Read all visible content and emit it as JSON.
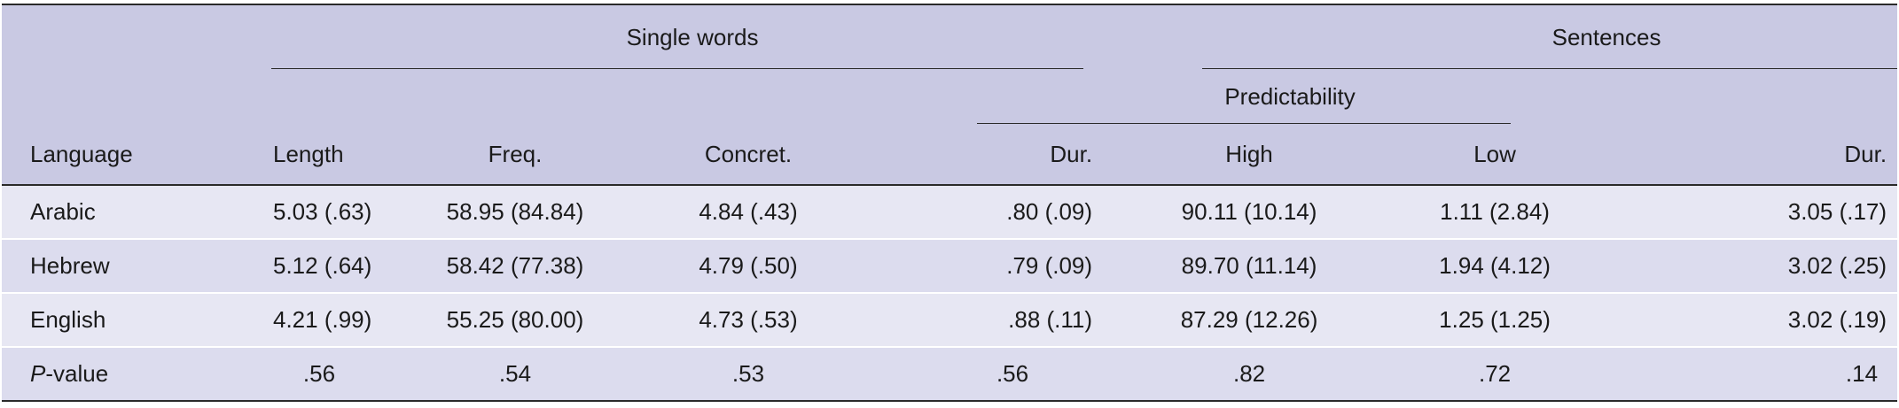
{
  "table": {
    "header": {
      "group_single_words": "Single words",
      "group_sentences": "Sentences",
      "subgroup_predictability": "Predictability",
      "columns": [
        "Language",
        "Length",
        "Freq.",
        "Concret.",
        "Dur.",
        "High",
        "Low",
        "Dur."
      ]
    },
    "rows": [
      {
        "language": "Arabic",
        "cells": [
          "5.03 (.63)",
          "58.95 (84.84)",
          "4.84 (.43)",
          ".80 (.09)",
          "90.11 (10.14)",
          "1.11 (2.84)",
          "3.05 (.17)"
        ]
      },
      {
        "language": "Hebrew",
        "cells": [
          "5.12 (.64)",
          "58.42 (77.38)",
          "4.79 (.50)",
          ".79 (.09)",
          "89.70 (11.14)",
          "1.94 (4.12)",
          "3.02 (.25)"
        ]
      },
      {
        "language": "English",
        "cells": [
          "4.21 (.99)",
          "55.25 (80.00)",
          "4.73 (.53)",
          ".88 (.11)",
          "87.29 (12.26)",
          "1.25 (1.25)",
          "3.02 (.19)"
        ]
      }
    ],
    "pvalue_row": {
      "label_italic": "P",
      "label_rest": "-value",
      "cells": [
        ".56",
        ".54",
        ".53",
        ".56",
        ".82",
        ".72",
        ".14"
      ]
    }
  }
}
